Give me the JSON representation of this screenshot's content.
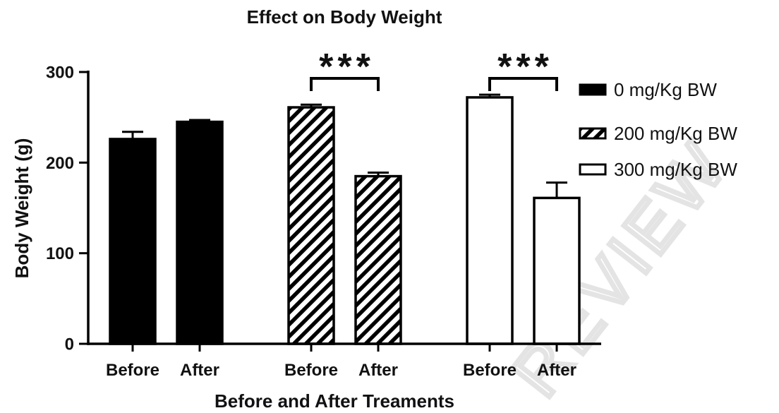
{
  "chart_data": {
    "type": "bar",
    "title": "Effect on Body Weight",
    "xlabel": "Before and After Treaments",
    "ylabel": "Body Weight (g)",
    "ylim": [
      0,
      300
    ],
    "yticks": [
      0,
      100,
      200,
      300
    ],
    "categories": [
      "Before",
      "After"
    ],
    "series": [
      {
        "name": "0 mg/Kg BW",
        "fill": "#000000",
        "hatched": false,
        "values": [
          226,
          245
        ],
        "error_upper": [
          234,
          247
        ]
      },
      {
        "name": "200 mg/Kg BW",
        "fill": "#ffffff",
        "hatched": true,
        "values": [
          261,
          185
        ],
        "error_upper": [
          264,
          189
        ]
      },
      {
        "name": "300 mg/Kg BW",
        "fill": "#ffffff",
        "hatched": false,
        "values": [
          272,
          161
        ],
        "error_upper": [
          275,
          178
        ]
      }
    ],
    "significance": [
      {
        "series": 1,
        "from": 0,
        "to": 1,
        "label": "***"
      },
      {
        "series": 2,
        "from": 0,
        "to": 1,
        "label": "***"
      }
    ],
    "legend": "right",
    "grid": false
  },
  "colors": {
    "bar_stroke": "#000000",
    "text": "#111111",
    "watermark": "#e4e4e4"
  },
  "watermark": "REVIEW"
}
